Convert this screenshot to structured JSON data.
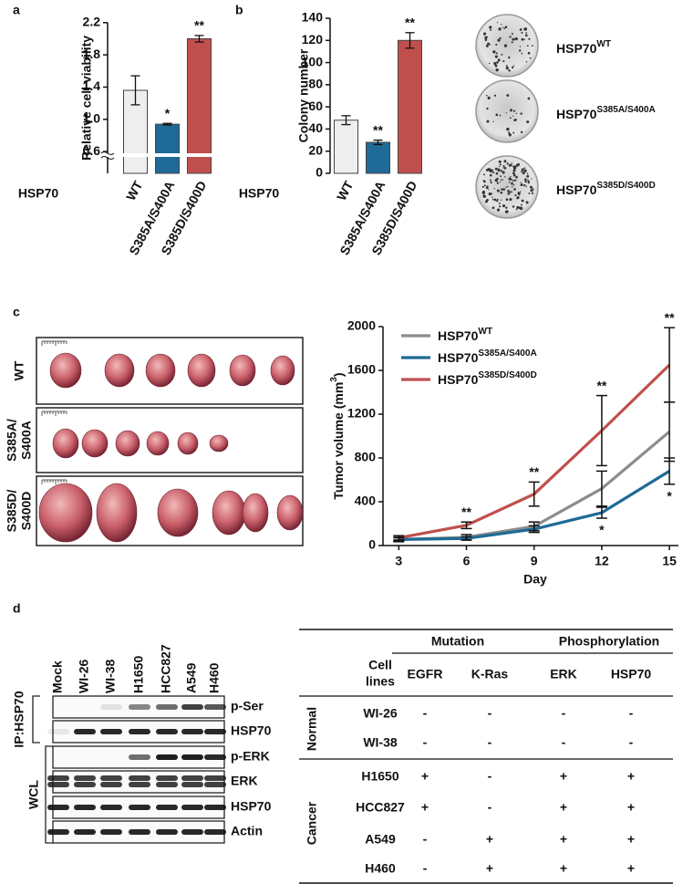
{
  "panel_labels": [
    "a",
    "b",
    "c",
    "d"
  ],
  "chart_data": [
    {
      "type": "bar",
      "ylabel": "Relative cell viability",
      "group_label": "HSP70",
      "categories": [
        "WT",
        "S385A/S400A",
        "S385D/S400D"
      ],
      "values": [
        1.36,
        0.94,
        2.0
      ],
      "errors": [
        0.18,
        0.01,
        0.04
      ],
      "significance": [
        null,
        "*",
        "**"
      ],
      "colors": [
        "#eeeeee",
        "#1f6a96",
        "#c0504d"
      ],
      "ylim": [
        0.33,
        2.2
      ],
      "yticks": [
        0.6,
        {
          "value": 1,
          "label": "1.0"
        },
        1.4,
        1.8,
        2.2
      ],
      "axis_break": true
    },
    {
      "type": "bar",
      "ylabel": "Colony number",
      "group_label": "HSP70",
      "categories": [
        "WT",
        "S385A/S400A",
        "S385D/S400D"
      ],
      "values": [
        48,
        28,
        120
      ],
      "errors": [
        4,
        2,
        7
      ],
      "significance": [
        null,
        "**",
        "**"
      ],
      "colors": [
        "#eeeeee",
        "#1f6a96",
        "#c0504d"
      ],
      "ylim": [
        0,
        140
      ],
      "yticks": [
        0,
        20,
        40,
        60,
        80,
        100,
        120,
        140
      ],
      "axis_break": false
    },
    {
      "type": "line",
      "xlabel": "Day",
      "ylabel": {
        "text": "Tumor volume (mm",
        "sup": "3",
        "tail": ")"
      },
      "x": [
        3,
        6,
        9,
        12,
        15
      ],
      "xlim": [
        2.3,
        15.4
      ],
      "xticks": [
        3,
        6,
        9,
        12,
        15
      ],
      "ylim": [
        0,
        2000
      ],
      "yticks": [
        0,
        400,
        800,
        1200,
        1600,
        2000
      ],
      "series": [
        {
          "name": {
            "text": "HSP70",
            "sup": "WT"
          },
          "color": "#8c8c8c",
          "values": [
            55,
            75,
            175,
            520,
            1040
          ],
          "errors": [
            20,
            25,
            40,
            160,
            270
          ],
          "significance": [
            null,
            null,
            null,
            null,
            null
          ],
          "significance_side": "above"
        },
        {
          "name": {
            "text": "HSP70",
            "sup": "S385A/S400A"
          },
          "color": "#1f6a96",
          "values": [
            55,
            65,
            150,
            300,
            680
          ],
          "errors": [
            15,
            15,
            30,
            50,
            120
          ],
          "significance": [
            null,
            null,
            null,
            "*",
            "*"
          ],
          "significance_side": "below"
        },
        {
          "name": {
            "text": "HSP70",
            "sup": "S385D/S400D"
          },
          "color": "#c0504d",
          "values": [
            70,
            185,
            470,
            1050,
            1650
          ],
          "errors": [
            20,
            30,
            110,
            320,
            340
          ],
          "significance": [
            null,
            "**",
            "**",
            "**",
            "**"
          ],
          "significance_side": "above"
        }
      ]
    }
  ],
  "colony_labels": [
    {
      "text": "HSP70",
      "sup": "WT"
    },
    {
      "text": "HSP70",
      "sup": "S385A/S400A"
    },
    {
      "text": "HSP70",
      "sup": "S385D/S400D"
    }
  ],
  "tumor_rows": [
    [
      "WT"
    ],
    [
      "S385A/",
      "S400A"
    ],
    [
      "S385D/",
      "S400D"
    ]
  ],
  "blot": {
    "lanes": [
      "Mock",
      "WI-26",
      "WI-38",
      "H1650",
      "HCC827",
      "A549",
      "H460"
    ],
    "groups": [
      {
        "label": "IP:HSP70",
        "rows": [
          "p-Ser",
          "HSP70"
        ]
      },
      {
        "label": "WCL",
        "rows": [
          "p-ERK",
          "ERK",
          "HSP70",
          "Actin"
        ]
      }
    ]
  },
  "table": {
    "group_headers": [
      "Mutation",
      "Phosphorylation"
    ],
    "columns": [
      [
        "Cell",
        "lines"
      ],
      "EGFR",
      "K-Ras",
      "ERK",
      "HSP70"
    ],
    "mark_colors": {
      "+": "#e8141c",
      "-": "#111111"
    },
    "groups": [
      {
        "label": "Normal",
        "rows": [
          [
            "WI-26",
            "-",
            "-",
            "-",
            "-"
          ],
          [
            "WI-38",
            "-",
            "-",
            "-",
            "-"
          ]
        ]
      },
      {
        "label": "Cancer",
        "rows": [
          [
            "H1650",
            "+",
            "-",
            "+",
            "+"
          ],
          [
            "HCC827",
            "+",
            "-",
            "+",
            "+"
          ],
          [
            "A549",
            "-",
            "+",
            "+",
            "+"
          ],
          [
            "H460",
            "-",
            "+",
            "+",
            "+"
          ]
        ]
      }
    ]
  }
}
